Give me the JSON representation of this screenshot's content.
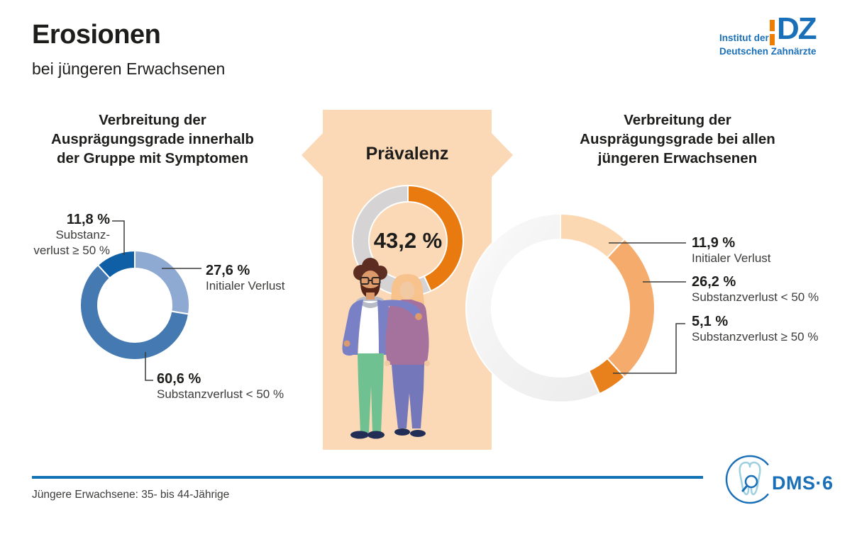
{
  "header": {
    "title": "Erosionen",
    "subtitle": "bei jüngeren Erwachsenen"
  },
  "idz_logo": {
    "line1": "Institut der",
    "line2": "Deutschen Zahnärzte",
    "mark_letters": "DZ",
    "blue": "#1a70b8",
    "orange": "#ee7d00"
  },
  "chart_data": [
    {
      "id": "grades-within-symptom-group",
      "type": "donut",
      "title": "Verbreitung der Ausprägungsgrade innerhalb der Gruppe mit Symptomen",
      "title_lines": [
        "Verbreitung der",
        "Ausprägungsgrade innerhalb",
        "der Gruppe mit Symptomen"
      ],
      "start_angle_deg": 0,
      "direction": "clockwise",
      "segments": [
        {
          "label": "Initialer Verlust",
          "value": 27.6,
          "display": "27,6 %",
          "color": "#8ea9d2"
        },
        {
          "label": "Substanzverlust < 50 %",
          "value": 60.6,
          "display": "60,6 %",
          "color": "#4579b2"
        },
        {
          "label": "Substanzverlust ≥ 50 %",
          "value": 11.8,
          "display": "11,8 %",
          "color": "#0e5fa5",
          "label_lines": [
            "Substanz-",
            "verlust ≥ 50 %"
          ]
        }
      ]
    },
    {
      "id": "prevalence",
      "type": "donut",
      "title": "Prävalenz",
      "center_label": "43,2 %",
      "start_angle_deg": 0,
      "direction": "clockwise",
      "segments": [
        {
          "label": "Prävalenz",
          "value": 43.2,
          "display": "43,2 %",
          "color": "#e87a10"
        },
        {
          "label": "",
          "value": 56.8,
          "display": "",
          "color": "#d5d3d4"
        }
      ]
    },
    {
      "id": "grades-all-younger-adults",
      "type": "donut",
      "title": "Verbreitung der Ausprägungsgrade bei allen jüngeren Erwachsenen",
      "title_lines": [
        "Verbreitung der",
        "Ausprägungsgrade bei allen",
        "jüngeren Erwachsenen"
      ],
      "start_angle_deg": 0,
      "direction": "clockwise",
      "segments": [
        {
          "label": "Initialer Verlust",
          "value": 11.9,
          "display": "11,9 %",
          "color": "#fbd7b2"
        },
        {
          "label": "Substanzverlust < 50 %",
          "value": 26.2,
          "display": "26,2 %",
          "color": "#f5ab6c"
        },
        {
          "label": "Substanzverlust ≥ 50 %",
          "value": 5.1,
          "display": "5,1 %",
          "color": "#e8811c"
        },
        {
          "label": "",
          "value": 56.8,
          "display": "",
          "color": "#ededed",
          "fade": true
        }
      ]
    }
  ],
  "banner": {
    "color": "#fbd8b6"
  },
  "footer": {
    "note": "Jüngere Erwachsene: 35- bis 44-Jährige",
    "dms_label": "DMS·6",
    "rule_color": "#1272b6"
  }
}
